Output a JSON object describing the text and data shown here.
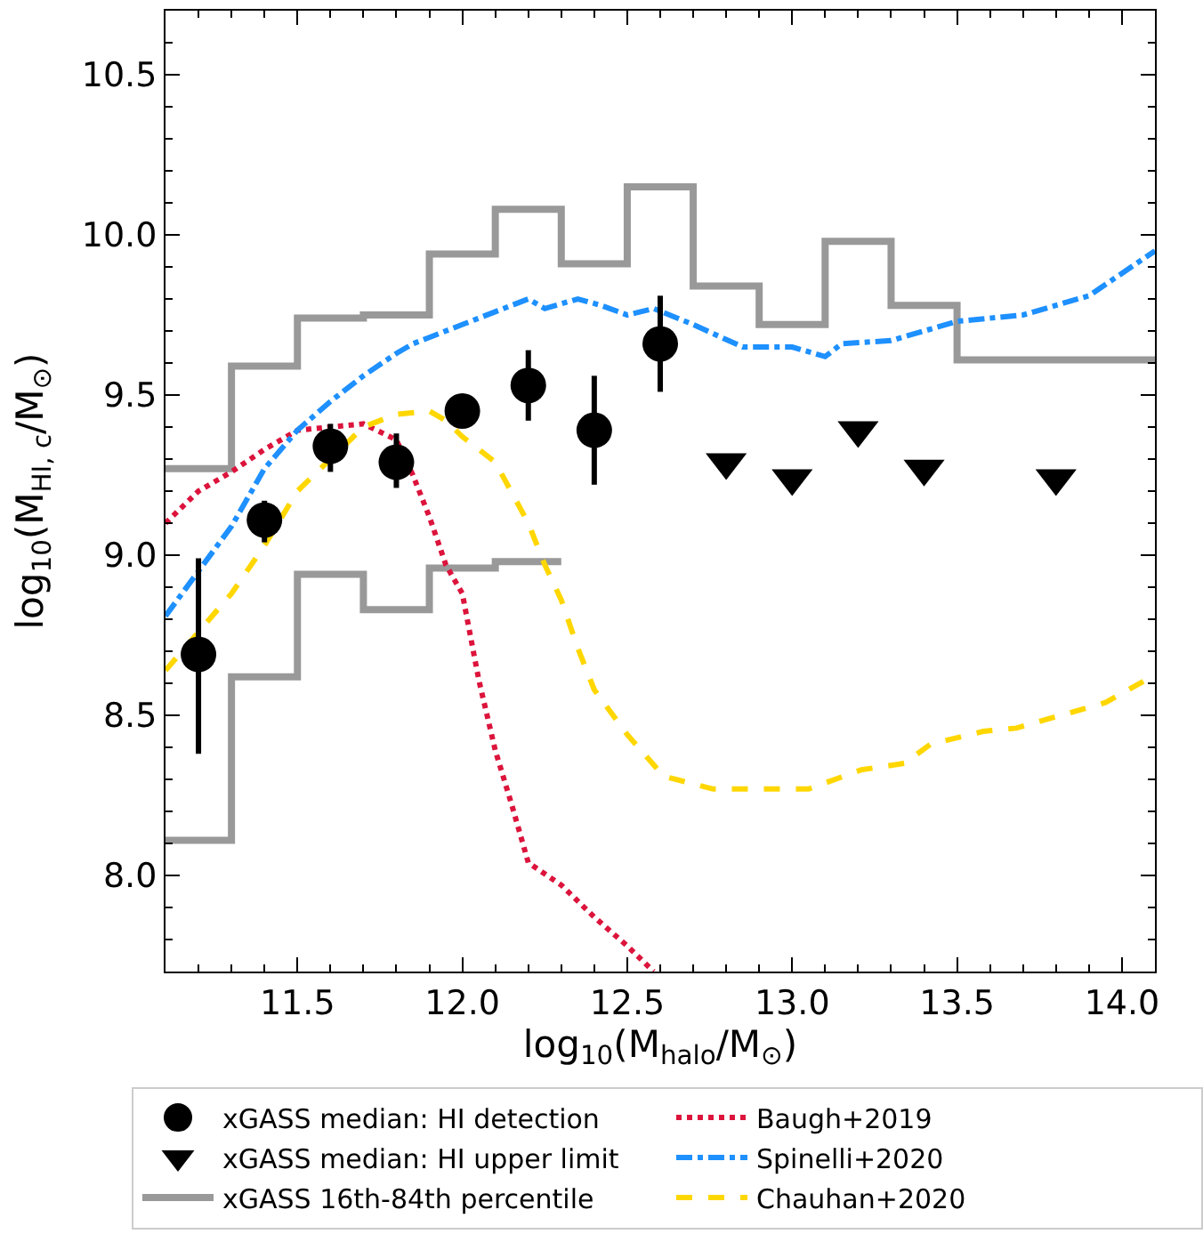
{
  "chart_data": {
    "type": "line",
    "xlabel": "log$_{10}$(M$_{halo}$/M$_{⊙}$)",
    "ylabel": "log$_{10}$(M$_{HI, c}$/M$_{⊙}$)",
    "xlim": [
      11.1,
      14.1
    ],
    "ylim": [
      7.7,
      10.7
    ],
    "xticks": [
      {
        "value": 11.2,
        "label": null
      },
      {
        "value": 11.3,
        "label": null
      },
      {
        "value": 11.4,
        "label": null
      },
      {
        "value": 11.5,
        "label": "11.5"
      },
      {
        "value": 11.6,
        "label": null
      },
      {
        "value": 11.7,
        "label": null
      },
      {
        "value": 11.8,
        "label": null
      },
      {
        "value": 11.9,
        "label": null
      },
      {
        "value": 12.0,
        "label": "12.0"
      },
      {
        "value": 12.1,
        "label": null
      },
      {
        "value": 12.2,
        "label": null
      },
      {
        "value": 12.3,
        "label": null
      },
      {
        "value": 12.4,
        "label": null
      },
      {
        "value": 12.5,
        "label": "12.5"
      },
      {
        "value": 12.6,
        "label": null
      },
      {
        "value": 12.7,
        "label": null
      },
      {
        "value": 12.8,
        "label": null
      },
      {
        "value": 12.9,
        "label": null
      },
      {
        "value": 13.0,
        "label": "13.0"
      },
      {
        "value": 13.1,
        "label": null
      },
      {
        "value": 13.2,
        "label": null
      },
      {
        "value": 13.3,
        "label": null
      },
      {
        "value": 13.4,
        "label": null
      },
      {
        "value": 13.5,
        "label": "13.5"
      },
      {
        "value": 13.6,
        "label": null
      },
      {
        "value": 13.7,
        "label": null
      },
      {
        "value": 13.8,
        "label": null
      },
      {
        "value": 13.9,
        "label": null
      },
      {
        "value": 14.0,
        "label": "14.0"
      }
    ],
    "yticks": [
      {
        "value": 7.8,
        "label": null
      },
      {
        "value": 7.9,
        "label": null
      },
      {
        "value": 8.0,
        "label": "8.0"
      },
      {
        "value": 8.1,
        "label": null
      },
      {
        "value": 8.2,
        "label": null
      },
      {
        "value": 8.3,
        "label": null
      },
      {
        "value": 8.4,
        "label": null
      },
      {
        "value": 8.5,
        "label": "8.5"
      },
      {
        "value": 8.6,
        "label": null
      },
      {
        "value": 8.7,
        "label": null
      },
      {
        "value": 8.8,
        "label": null
      },
      {
        "value": 8.9,
        "label": null
      },
      {
        "value": 9.0,
        "label": "9.0"
      },
      {
        "value": 9.1,
        "label": null
      },
      {
        "value": 9.2,
        "label": null
      },
      {
        "value": 9.3,
        "label": null
      },
      {
        "value": 9.4,
        "label": null
      },
      {
        "value": 9.5,
        "label": "9.5"
      },
      {
        "value": 9.6,
        "label": null
      },
      {
        "value": 9.7,
        "label": null
      },
      {
        "value": 9.8,
        "label": null
      },
      {
        "value": 9.9,
        "label": null
      },
      {
        "value": 10.0,
        "label": "10.0"
      },
      {
        "value": 10.1,
        "label": null
      },
      {
        "value": 10.2,
        "label": null
      },
      {
        "value": 10.3,
        "label": null
      },
      {
        "value": 10.4,
        "label": null
      },
      {
        "value": 10.5,
        "label": "10.5"
      },
      {
        "value": 10.6,
        "label": null
      }
    ],
    "legend": "bottom",
    "series": [
      {
        "name": "xGASS 16th-84th percentile",
        "type": "step",
        "color": "#999999",
        "marker": "none",
        "line_style": "solid",
        "x": [
          11.1,
          11.3,
          11.5,
          11.7,
          11.9,
          12.1,
          12.3,
          12.5,
          12.7,
          12.9,
          13.1,
          13.3,
          13.5,
          14.1
        ],
        "values": [
          9.27,
          9.59,
          9.74,
          9.75,
          9.94,
          10.08,
          9.91,
          10.15,
          9.84,
          9.72,
          9.98,
          9.78,
          9.61,
          9.61
        ]
      },
      {
        "type": "step",
        "color": "#999999",
        "marker": "none",
        "line_style": "solid",
        "x": [
          11.1,
          11.3,
          11.5,
          11.7,
          11.9,
          12.1,
          12.3
        ],
        "values": [
          8.11,
          8.62,
          8.94,
          8.83,
          8.96,
          8.98,
          8.98
        ]
      },
      {
        "name": "Baugh+2019",
        "color": "#dc143c",
        "marker": "none",
        "line_style": "dotted",
        "x": [
          11.1,
          11.2,
          11.3,
          11.4,
          11.5,
          11.7,
          11.8,
          11.85,
          11.9,
          11.95,
          12.0,
          12.05,
          12.1,
          12.15,
          12.2,
          12.3,
          12.4,
          12.5,
          12.58
        ],
        "values": [
          9.1,
          9.2,
          9.26,
          9.33,
          9.39,
          9.41,
          9.36,
          9.25,
          9.12,
          8.97,
          8.88,
          8.61,
          8.39,
          8.22,
          8.04,
          7.97,
          7.87,
          7.78,
          7.7
        ]
      },
      {
        "name": "Spinelli+2020",
        "color": "#1e90ff",
        "marker": "none",
        "line_style": "dashdot",
        "x": [
          11.1,
          11.2,
          11.3,
          11.4,
          11.5,
          11.6,
          11.7,
          11.8,
          11.85,
          11.9,
          12.0,
          12.1,
          12.2,
          12.25,
          12.35,
          12.42,
          12.5,
          12.58,
          12.7,
          12.85,
          13.0,
          13.1,
          13.15,
          13.3,
          13.5,
          13.7,
          13.9,
          14.0,
          14.1
        ],
        "values": [
          8.81,
          8.95,
          9.09,
          9.27,
          9.39,
          9.48,
          9.56,
          9.63,
          9.66,
          9.68,
          9.72,
          9.76,
          9.8,
          9.77,
          9.8,
          9.78,
          9.75,
          9.77,
          9.72,
          9.65,
          9.65,
          9.62,
          9.66,
          9.67,
          9.73,
          9.75,
          9.81,
          9.88,
          9.95
        ]
      },
      {
        "name": "Chauhan+2020",
        "color": "#ffd700",
        "marker": "none",
        "line_style": "dashed",
        "x": [
          11.1,
          11.2,
          11.3,
          11.4,
          11.5,
          11.7,
          11.8,
          11.9,
          11.95,
          12.0,
          12.1,
          12.2,
          12.25,
          12.3,
          12.35,
          12.4,
          12.5,
          12.61,
          12.76,
          13.05,
          13.21,
          13.34,
          13.42,
          13.58,
          13.68,
          13.95,
          14.09
        ],
        "values": [
          8.64,
          8.76,
          8.88,
          9.03,
          9.2,
          9.4,
          9.44,
          9.45,
          9.42,
          9.37,
          9.29,
          9.1,
          8.97,
          8.86,
          8.71,
          8.58,
          8.44,
          8.31,
          8.27,
          8.27,
          8.33,
          8.35,
          8.41,
          8.45,
          8.46,
          8.54,
          8.62
        ]
      },
      {
        "name": "xGASS median: HI detection",
        "type": "scatter",
        "color": "#000000",
        "marker": "circle",
        "x": [
          11.2,
          11.4,
          11.6,
          11.8,
          12.0,
          12.2,
          12.4,
          12.6
        ],
        "values": [
          8.69,
          9.11,
          9.34,
          9.29,
          9.45,
          9.53,
          9.39,
          9.66
        ],
        "errors": [
          [
            8.38,
            8.99
          ],
          [
            9.04,
            9.17
          ],
          [
            9.26,
            9.41
          ],
          [
            9.21,
            9.38
          ],
          null,
          [
            9.42,
            9.64
          ],
          [
            9.22,
            9.56
          ],
          [
            9.51,
            9.81
          ]
        ]
      },
      {
        "name": "xGASS median: HI upper limit",
        "type": "scatter",
        "color": "#000000",
        "marker": "triangle",
        "x": [
          12.8,
          13.0,
          13.2,
          13.4,
          13.8
        ],
        "values": [
          9.29,
          9.24,
          9.39,
          9.27,
          9.24
        ]
      }
    ]
  }
}
